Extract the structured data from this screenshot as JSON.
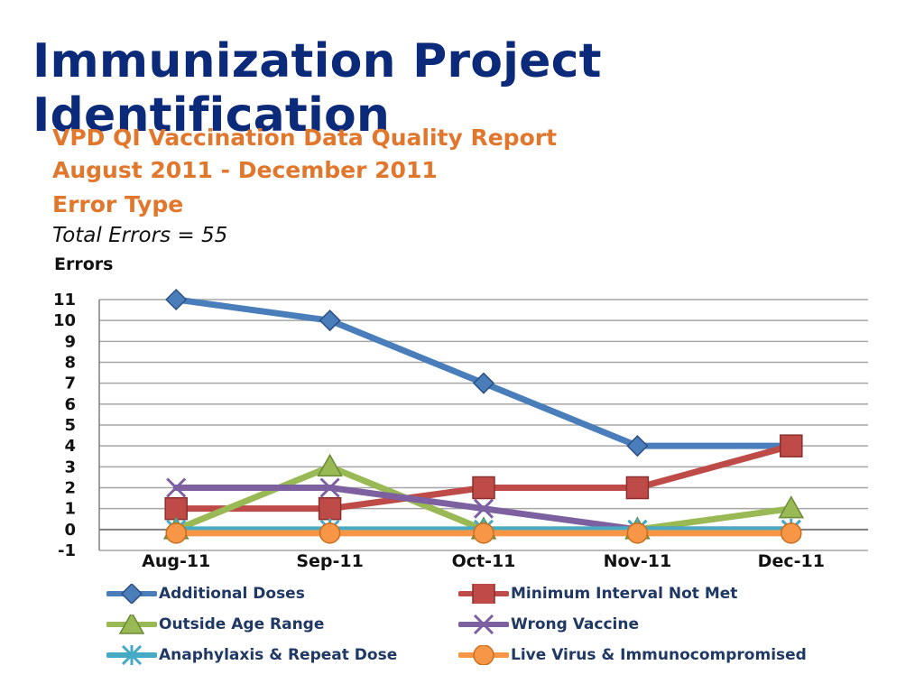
{
  "slide": {
    "title": "Immunization Project Identification"
  },
  "report": {
    "title_line1": "VPD QI Vaccination Data Quality Report",
    "title_line2": "August 2011 - December 2011",
    "title_line3": "Error Type",
    "total_errors": "Total Errors = 55"
  },
  "chart_data": {
    "type": "line",
    "ylabel": "Errors",
    "xlabel": "",
    "ylim": [
      -1,
      11
    ],
    "yticks": [
      11,
      10,
      9,
      8,
      7,
      6,
      5,
      4,
      3,
      2,
      1,
      0,
      -1
    ],
    "grid": true,
    "legend_position": "bottom",
    "categories": [
      "Aug-11",
      "Sep-11",
      "Oct-11",
      "Nov-11",
      "Dec-11"
    ],
    "series": [
      {
        "name": "Additional Doses",
        "values": [
          11,
          10,
          7,
          4,
          4
        ],
        "color": "#4a7ebb",
        "marker": "diamond"
      },
      {
        "name": "Minimum Interval Not Met",
        "values": [
          1,
          1,
          2,
          2,
          4
        ],
        "color": "#be4b48",
        "marker": "square"
      },
      {
        "name": "Outside Age Range",
        "values": [
          0,
          3,
          0,
          0,
          1
        ],
        "color": "#98b954",
        "marker": "triangle"
      },
      {
        "name": "Wrong Vaccine",
        "values": [
          2,
          2,
          1,
          0,
          0
        ],
        "color": "#7d60a0",
        "marker": "x"
      },
      {
        "name": "Anaphylaxis & Repeat Dose",
        "values": [
          0,
          0,
          0,
          0,
          0
        ],
        "color": "#46aac5",
        "marker": "star"
      },
      {
        "name": "Live Virus & Immunocompromised",
        "values": [
          0,
          0,
          0,
          0,
          0
        ],
        "color": "#f79646",
        "marker": "circle"
      }
    ]
  }
}
